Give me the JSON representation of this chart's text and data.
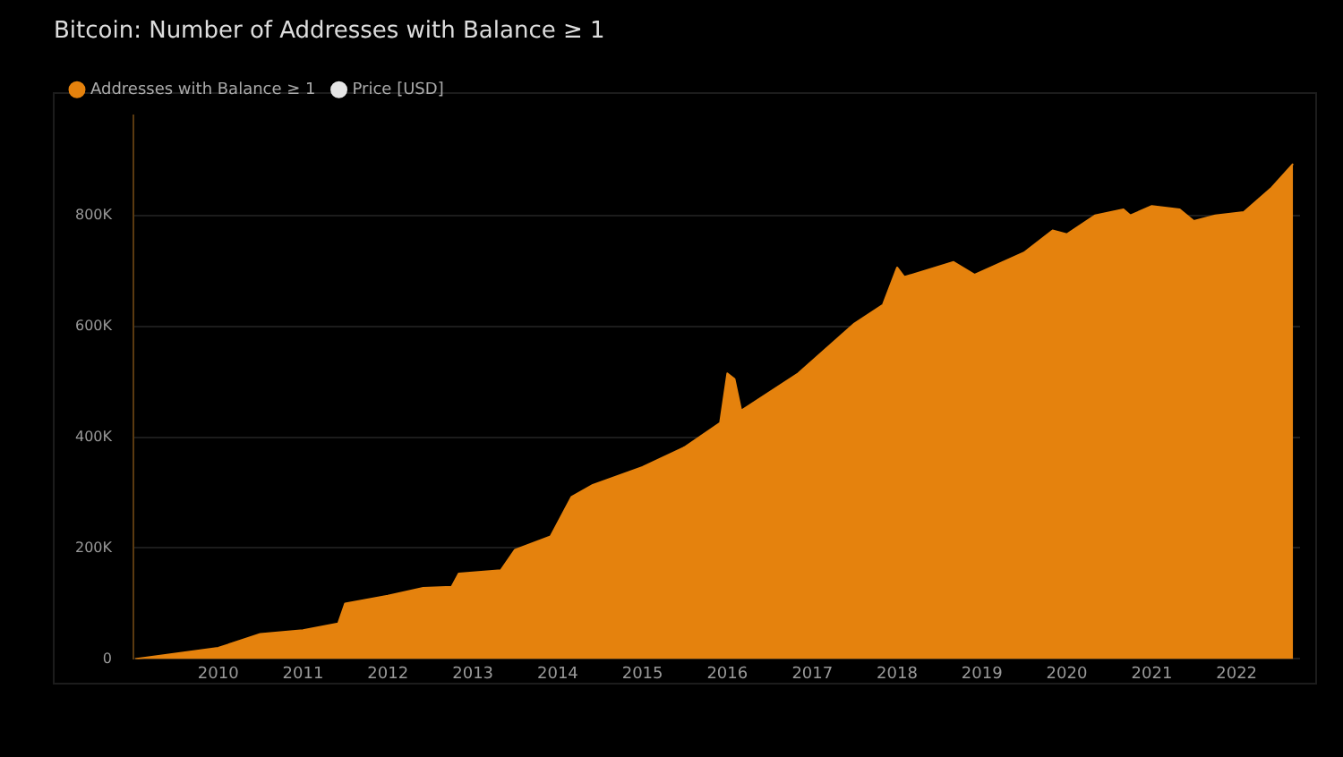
{
  "chart_data": {
    "type": "area",
    "title": "Bitcoin: Number of Addresses with Balance ≥ 1",
    "x": [
      "2009-01-09",
      "2009-06",
      "2010-01",
      "2010-07",
      "2011-01",
      "2011-06",
      "2011-07",
      "2012-01",
      "2012-06",
      "2012-10",
      "2012-11",
      "2013-05",
      "2013-07",
      "2013-12",
      "2014-03",
      "2014-06",
      "2015-01",
      "2015-07",
      "2015-12",
      "2016-01",
      "2016-02",
      "2016-03",
      "2016-11",
      "2017-07",
      "2017-11",
      "2018-01",
      "2018-02",
      "2018-09",
      "2018-12",
      "2019-07",
      "2019-11",
      "2020-01",
      "2020-05",
      "2020-09",
      "2020-10",
      "2021-01",
      "2021-05",
      "2021-07",
      "2021-10",
      "2022-02",
      "2022-06",
      "2022-09"
    ],
    "series": [
      {
        "name": "Addresses with Balance ≥ 1",
        "color": "#e5820d",
        "values": [
          0,
          8000,
          20000,
          45000,
          52000,
          64000,
          100000,
          114000,
          128000,
          130000,
          154000,
          160000,
          197000,
          221000,
          292000,
          314000,
          346000,
          382000,
          426000,
          515000,
          505000,
          448000,
          515000,
          605000,
          639000,
          706000,
          689000,
          716000,
          693000,
          733000,
          773000,
          766000,
          800000,
          811000,
          800000,
          817000,
          811000,
          790000,
          800000,
          806000,
          850000,
          893000
        ]
      },
      {
        "name": "Price [USD]",
        "color": "#e6e6e6",
        "values": [
          null,
          null,
          null,
          null,
          null,
          null,
          null,
          null,
          null,
          null,
          null,
          null,
          null,
          null,
          null,
          null,
          null,
          null,
          null,
          null,
          null,
          null,
          null,
          null,
          null,
          null,
          null,
          null,
          null,
          null,
          null,
          null,
          null,
          null,
          null,
          null,
          null,
          null,
          null,
          null,
          null,
          null
        ]
      }
    ],
    "xlim": [
      "2009-01",
      "2022-10"
    ],
    "xticks": [
      "2010",
      "2011",
      "2012",
      "2013",
      "2014",
      "2015",
      "2016",
      "2017",
      "2018",
      "2019",
      "2020",
      "2021",
      "2022"
    ],
    "ylim": [
      0,
      980000
    ],
    "yticks": [
      0,
      {
        "value": 200000,
        "label": "200K"
      },
      {
        "value": 400000,
        "label": "400K"
      },
      {
        "value": 600000,
        "label": "600K"
      },
      {
        "value": 800000,
        "label": "800K"
      }
    ],
    "grid": "y",
    "legend": "top left"
  }
}
